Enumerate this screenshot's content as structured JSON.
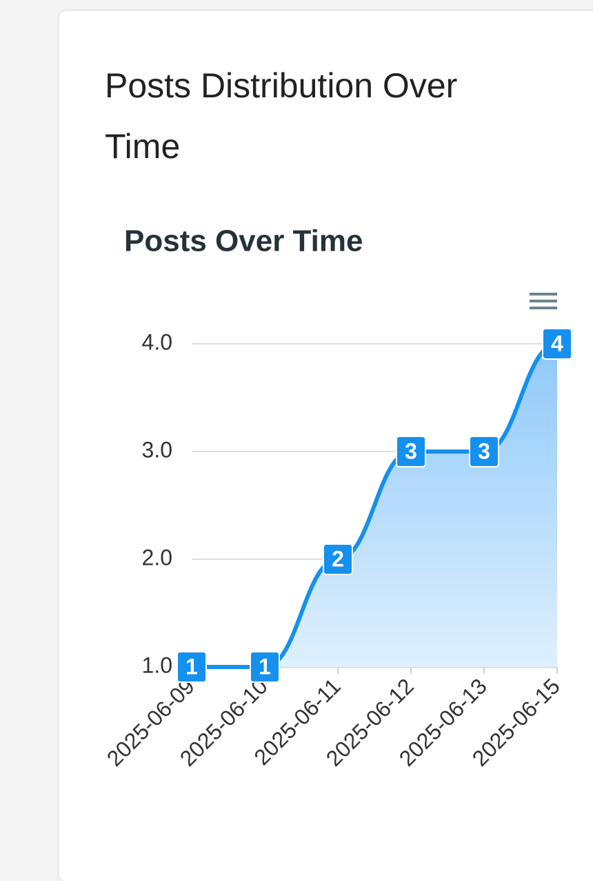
{
  "card_title": "Posts Distribution Over Time",
  "chart_data": {
    "type": "area",
    "title": "Posts Over Time",
    "categories": [
      "2025-06-09",
      "2025-06-10",
      "2025-06-11",
      "2025-06-12",
      "2025-06-13",
      "2025-06-15"
    ],
    "values": [
      1,
      1,
      2,
      3,
      3,
      4
    ],
    "color": "#1590ee",
    "ylim": [
      1,
      4
    ],
    "yticks": [
      {
        "value": 1,
        "label": "1.0"
      },
      {
        "value": 2,
        "label": "2.0"
      },
      {
        "value": 3,
        "label": "3.0"
      },
      {
        "value": 4,
        "label": "4.0"
      }
    ],
    "grid": true,
    "data_labels": true
  }
}
